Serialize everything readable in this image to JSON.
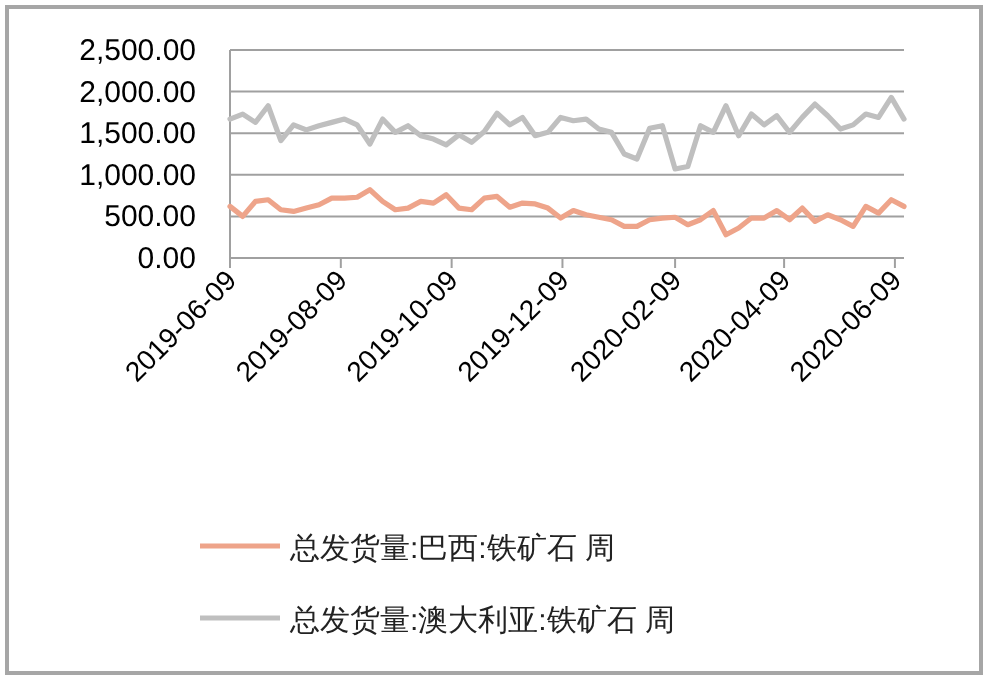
{
  "chart_data": {
    "type": "line",
    "x": [
      "2019-06-09",
      "2019-06-16",
      "2019-06-23",
      "2019-06-30",
      "2019-07-07",
      "2019-07-14",
      "2019-07-21",
      "2019-07-28",
      "2019-08-04",
      "2019-08-11",
      "2019-08-18",
      "2019-08-25",
      "2019-09-01",
      "2019-09-08",
      "2019-09-15",
      "2019-09-22",
      "2019-09-29",
      "2019-10-06",
      "2019-10-13",
      "2019-10-20",
      "2019-10-27",
      "2019-11-03",
      "2019-11-10",
      "2019-11-17",
      "2019-11-24",
      "2019-12-01",
      "2019-12-08",
      "2019-12-15",
      "2019-12-22",
      "2019-12-29",
      "2020-01-05",
      "2020-01-12",
      "2020-01-19",
      "2020-01-26",
      "2020-02-02",
      "2020-02-09",
      "2020-02-16",
      "2020-02-23",
      "2020-03-01",
      "2020-03-08",
      "2020-03-15",
      "2020-03-22",
      "2020-03-29",
      "2020-04-05",
      "2020-04-12",
      "2020-04-19",
      "2020-04-26",
      "2020-05-03",
      "2020-05-10",
      "2020-05-17",
      "2020-05-24",
      "2020-05-31",
      "2020-06-07",
      "2020-06-14"
    ],
    "series": [
      {
        "name": "总发货量:巴西:铁矿石 周",
        "color": "#eea48a",
        "values": [
          620,
          500,
          680,
          700,
          580,
          560,
          600,
          640,
          720,
          720,
          730,
          820,
          680,
          580,
          600,
          680,
          660,
          760,
          600,
          580,
          720,
          740,
          610,
          660,
          650,
          600,
          480,
          570,
          520,
          490,
          460,
          380,
          380,
          460,
          480,
          490,
          400,
          460,
          570,
          280,
          360,
          480,
          480,
          570,
          460,
          600,
          440,
          520,
          460,
          380,
          620,
          540,
          700,
          620
        ]
      },
      {
        "name": "总发货量:澳大利亚:铁矿石 周",
        "color": "#bfbfbf",
        "values": [
          1670,
          1730,
          1630,
          1830,
          1410,
          1600,
          1540,
          1590,
          1630,
          1670,
          1600,
          1370,
          1670,
          1510,
          1590,
          1470,
          1430,
          1360,
          1480,
          1390,
          1520,
          1740,
          1600,
          1690,
          1470,
          1510,
          1690,
          1650,
          1670,
          1550,
          1510,
          1250,
          1190,
          1560,
          1590,
          1070,
          1100,
          1590,
          1510,
          1830,
          1470,
          1730,
          1600,
          1710,
          1510,
          1690,
          1850,
          1710,
          1550,
          1600,
          1730,
          1690,
          1930,
          1670
        ]
      }
    ],
    "xlim": [
      "2019-06-09",
      "2020-06-14"
    ],
    "xticks": [
      "2019-06-09",
      "2019-08-09",
      "2019-10-09",
      "2019-12-09",
      "2020-02-09",
      "2020-04-09",
      "2020-06-09"
    ],
    "ylim": [
      0,
      2500
    ],
    "yticks": [
      {
        "value": 0,
        "label": "0.00"
      },
      {
        "value": 500,
        "label": "500.00"
      },
      {
        "value": 1000,
        "label": "1,000.00"
      },
      {
        "value": 1500,
        "label": "1,500.00"
      },
      {
        "value": 2000,
        "label": "2,000.00"
      },
      {
        "value": 2500,
        "label": "2,500.00"
      }
    ],
    "grid": "y",
    "legend": "bottom",
    "marker": "none",
    "line_style": "solid"
  }
}
